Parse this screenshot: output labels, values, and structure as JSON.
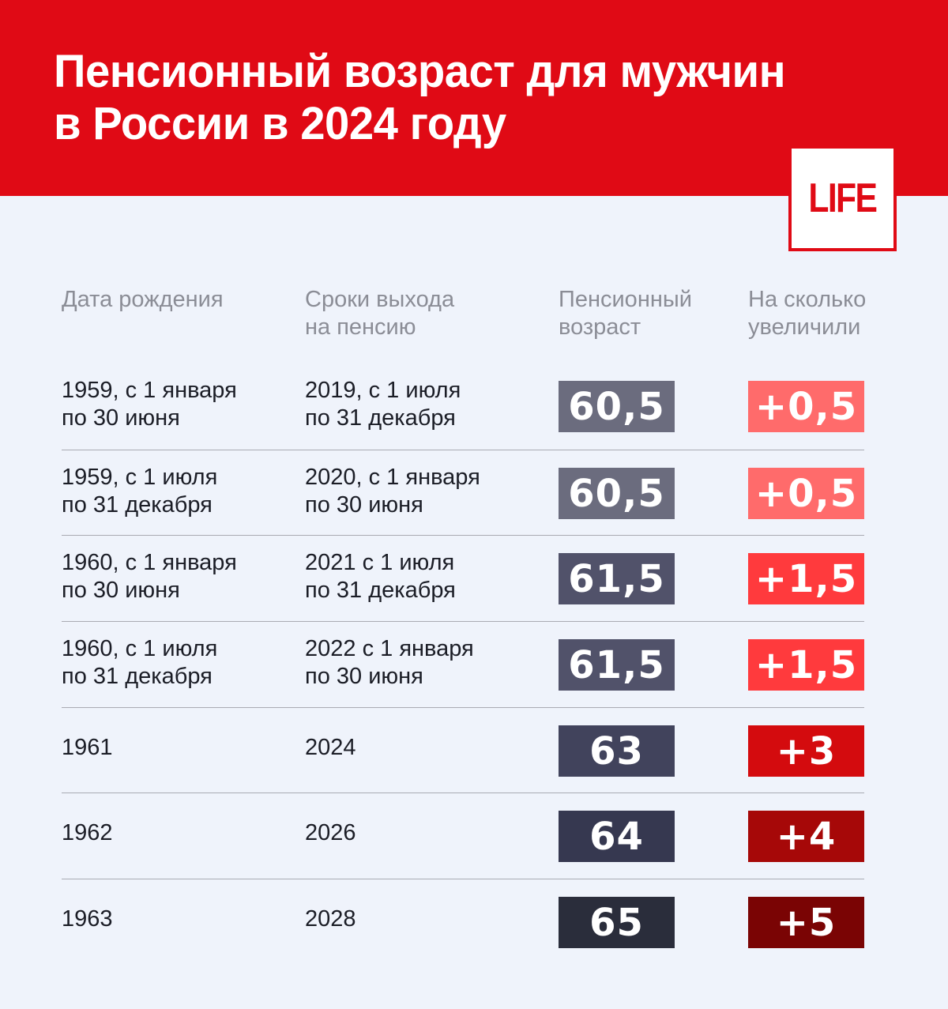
{
  "header": {
    "title_line1": "Пенсионный возраст для мужчин",
    "title_line2": "в России в 2024 году",
    "background_color": "#e00a15"
  },
  "logo": {
    "text": "LIFE",
    "color": "#e00a15"
  },
  "table": {
    "columns": [
      {
        "line1": "Дата рождения",
        "line2": ""
      },
      {
        "line1": "Сроки выхода",
        "line2": "на пенсию"
      },
      {
        "line1": "Пенсионный",
        "line2": "возраст"
      },
      {
        "line1": "На сколько",
        "line2": "увеличили"
      }
    ],
    "rows": [
      {
        "birth": [
          "1959, с 1 января",
          "по 30 июня"
        ],
        "retire": [
          "2019, с 1 июля",
          "по 31 декабря"
        ],
        "age": "60,5",
        "increase": "+0,5",
        "age_color": "#6b6c7e",
        "inc_color": "#ff6b6b"
      },
      {
        "birth": [
          "1959, с 1 июля",
          "по 31 декабря"
        ],
        "retire": [
          "2020, с 1 января",
          "по 30 июня"
        ],
        "age": "60,5",
        "increase": "+0,5",
        "age_color": "#6b6c7e",
        "inc_color": "#ff6b6b"
      },
      {
        "birth": [
          "1960, с 1 января",
          "по 30 июня"
        ],
        "retire": [
          "2021 с 1 июля",
          "по 31 декабря"
        ],
        "age": "61,5",
        "increase": "+1,5",
        "age_color": "#51526a",
        "inc_color": "#ff3a3d"
      },
      {
        "birth": [
          "1960, с 1 июля",
          "по 31 декабря"
        ],
        "retire": [
          "2022 с 1 января",
          "по 30 июня"
        ],
        "age": "61,5",
        "increase": "+1,5",
        "age_color": "#51526a",
        "inc_color": "#ff3a3d"
      },
      {
        "birth": [
          "1961",
          ""
        ],
        "retire": [
          "2024",
          ""
        ],
        "age": "63",
        "increase": "+3",
        "age_color": "#41435c",
        "inc_color": "#d40b0e"
      },
      {
        "birth": [
          "1962",
          ""
        ],
        "retire": [
          "2026",
          ""
        ],
        "age": "64",
        "increase": "+4",
        "age_color": "#363850",
        "inc_color": "#a60808"
      },
      {
        "birth": [
          "1963",
          ""
        ],
        "retire": [
          "2028",
          ""
        ],
        "age": "65",
        "increase": "+5",
        "age_color": "#2a2d3b",
        "inc_color": "#7a0404"
      }
    ]
  }
}
